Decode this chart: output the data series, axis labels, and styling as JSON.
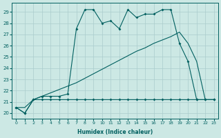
{
  "xlabel": "Humidex (Indice chaleur)",
  "xlim": [
    -0.5,
    23.5
  ],
  "ylim": [
    19.5,
    29.8
  ],
  "xticks": [
    0,
    1,
    2,
    3,
    4,
    5,
    6,
    7,
    8,
    9,
    10,
    11,
    12,
    13,
    14,
    15,
    16,
    17,
    18,
    19,
    20,
    21,
    22,
    23
  ],
  "yticks": [
    20,
    21,
    22,
    23,
    24,
    25,
    26,
    27,
    28,
    29
  ],
  "bg_color": "#cce8e4",
  "line_color": "#005f5f",
  "grid_color": "#aacccc",
  "line1_x": [
    0,
    1,
    2,
    3,
    4,
    5,
    6,
    7,
    8,
    9,
    10,
    11,
    12,
    13,
    14,
    15,
    16,
    17,
    18,
    19,
    20,
    21,
    22,
    23
  ],
  "line1_y": [
    20.5,
    20.0,
    21.2,
    21.5,
    21.5,
    21.5,
    21.7,
    27.5,
    29.2,
    29.2,
    28.0,
    28.2,
    27.5,
    29.2,
    28.5,
    28.8,
    28.8,
    29.2,
    29.2,
    26.2,
    24.6,
    21.2,
    21.2,
    21.2
  ],
  "line2_x": [
    0,
    1,
    2,
    3,
    4,
    5,
    6,
    7,
    8,
    9,
    10,
    11,
    12,
    13,
    14,
    15,
    16,
    17,
    18,
    19,
    20,
    21,
    22,
    23
  ],
  "line2_y": [
    20.5,
    20.0,
    21.2,
    21.2,
    21.2,
    21.2,
    21.2,
    21.2,
    21.2,
    21.2,
    21.2,
    21.2,
    21.2,
    21.2,
    21.2,
    21.2,
    21.2,
    21.2,
    21.2,
    21.2,
    21.2,
    21.2,
    21.2,
    21.2
  ],
  "line3_x": [
    0,
    1,
    2,
    3,
    4,
    5,
    6,
    7,
    8,
    9,
    10,
    11,
    12,
    13,
    14,
    15,
    16,
    17,
    18,
    19,
    20,
    21,
    22,
    23
  ],
  "line3_y": [
    20.5,
    20.5,
    21.2,
    21.5,
    21.8,
    22.1,
    22.4,
    22.7,
    23.1,
    23.5,
    23.9,
    24.3,
    24.7,
    25.1,
    25.5,
    25.8,
    26.2,
    26.5,
    26.8,
    27.2,
    26.2,
    24.6,
    21.2,
    21.2
  ]
}
